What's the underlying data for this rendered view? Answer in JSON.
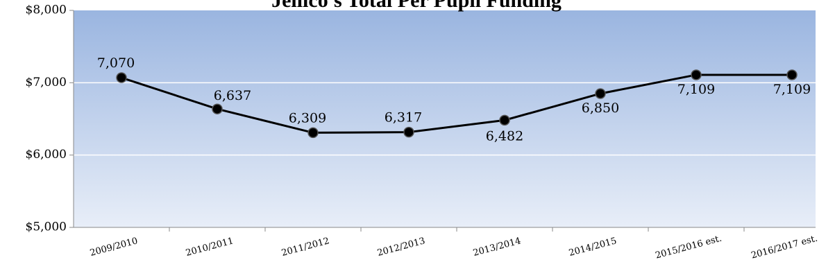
{
  "chart_data": {
    "type": "line",
    "title": "Jellico's Total Per Pupil Funding",
    "categories": [
      "2009/2010",
      "2010/2011",
      "2011/2012",
      "2012/2013",
      "2013/2014",
      "2014/2015",
      "2015/2016 est.",
      "2016/2017 est."
    ],
    "series": [
      {
        "name": "Total Per Pupil Funding",
        "color": "#000000",
        "values": [
          7070,
          6637,
          6309,
          6317,
          6482,
          6850,
          7109,
          7109
        ],
        "value_labels": [
          "7,070",
          "6,637",
          "6,309",
          "6,317",
          "6,482",
          "6,850",
          "7,109",
          "7,109"
        ]
      }
    ],
    "ylim": [
      5000,
      8000
    ],
    "yticks": [
      {
        "value": 5000,
        "label": "$5,000"
      },
      {
        "value": 6000,
        "label": "$6,000"
      },
      {
        "value": 7000,
        "label": "$7,000"
      },
      {
        "value": 8000,
        "label": "$8,000"
      }
    ],
    "grid": true
  }
}
